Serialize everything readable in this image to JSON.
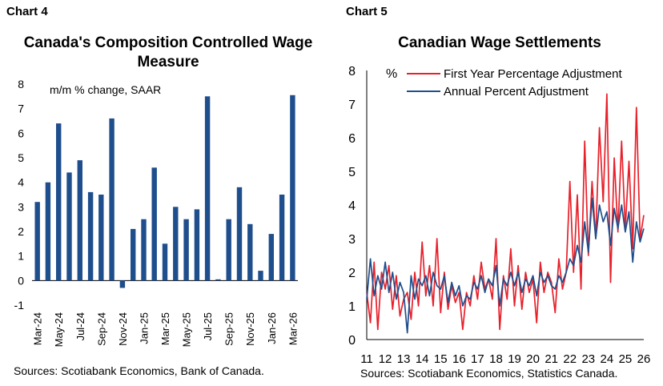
{
  "chart_data": [
    {
      "type": "bar",
      "chart_label": "Chart 4",
      "title": "Canada's Composition Controlled Wage Measure",
      "unit_label": "m/m % change, SAAR",
      "source": "Sources: Scotiabank Economics, Bank of Canada.",
      "bar_color": "#1f4e8c",
      "ylim": [
        -1,
        8
      ],
      "yticks": [
        "8",
        "7",
        "6",
        "5",
        "4",
        "3",
        "2",
        "1",
        "0",
        "-1"
      ],
      "categories": [
        "Mar-24",
        "Apr-24",
        "May-24",
        "Jun-24",
        "Jul-24",
        "Aug-24",
        "Sep-24",
        "Oct-24",
        "Nov-24",
        "Dec-24",
        "Jan-25",
        "Feb-25",
        "Mar-25",
        "Apr-25",
        "May-25",
        "Jun-25",
        "Jul-25",
        "Aug-25",
        "Sep-25",
        "Oct-25",
        "Nov-25",
        "Dec-25",
        "Jan-26",
        "Feb-26",
        "Mar-26"
      ],
      "tick_labels": [
        "Mar-24",
        "May-24",
        "Jul-24",
        "Sep-24",
        "Nov-24",
        "Jan-25",
        "Mar-25",
        "May-25",
        "Jul-25",
        "Sep-25",
        "Nov-25",
        "Jan-26",
        "Mar-26"
      ],
      "values": [
        3.2,
        4.0,
        6.4,
        4.4,
        4.9,
        3.6,
        3.5,
        6.6,
        -0.3,
        2.1,
        2.5,
        4.6,
        1.5,
        3.0,
        2.5,
        2.9,
        7.5,
        0.05,
        2.5,
        3.8,
        2.3,
        0.4,
        1.9,
        3.5,
        7.55
      ]
    },
    {
      "type": "line",
      "chart_label": "Chart 5",
      "title": "Canadian Wage Settlements",
      "ylabel": "%",
      "source": "Sources: Scotiabank Economics, Statistics Canada.",
      "ylim": [
        0,
        8
      ],
      "yticks": [
        "8",
        "7",
        "6",
        "5",
        "4",
        "3",
        "2",
        "1",
        "0"
      ],
      "xlim": [
        2011,
        2026
      ],
      "xticks": [
        "11",
        "12",
        "13",
        "14",
        "15",
        "16",
        "17",
        "18",
        "19",
        "20",
        "21",
        "22",
        "23",
        "24",
        "25",
        "26"
      ],
      "series": [
        {
          "name": "First Year Percentage Adjustment",
          "color": "#e8202a",
          "x": [
            2011.0,
            2011.2,
            2011.4,
            2011.6,
            2011.8,
            2012.0,
            2012.2,
            2012.4,
            2012.6,
            2012.8,
            2013.0,
            2013.2,
            2013.4,
            2013.6,
            2013.8,
            2014.0,
            2014.2,
            2014.4,
            2014.6,
            2014.8,
            2015.0,
            2015.2,
            2015.4,
            2015.6,
            2015.8,
            2016.0,
            2016.2,
            2016.4,
            2016.6,
            2016.8,
            2017.0,
            2017.2,
            2017.4,
            2017.6,
            2017.8,
            2018.0,
            2018.2,
            2018.4,
            2018.6,
            2018.8,
            2019.0,
            2019.2,
            2019.4,
            2019.6,
            2019.8,
            2020.0,
            2020.2,
            2020.4,
            2020.6,
            2020.8,
            2021.0,
            2021.2,
            2021.4,
            2021.6,
            2021.8,
            2022.0,
            2022.2,
            2022.4,
            2022.6,
            2022.8,
            2023.0,
            2023.2,
            2023.4,
            2023.6,
            2023.8,
            2024.0,
            2024.2,
            2024.4,
            2024.6,
            2024.8,
            2025.0,
            2025.2,
            2025.4,
            2025.6,
            2025.8,
            2026.0
          ],
          "y": [
            1.4,
            0.5,
            2.3,
            0.3,
            2.0,
            1.5,
            2.2,
            0.9,
            1.9,
            0.7,
            1.2,
            1.4,
            0.6,
            2.0,
            1.0,
            2.9,
            1.3,
            2.2,
            1.0,
            3.0,
            0.8,
            2.0,
            0.9,
            1.6,
            1.1,
            1.4,
            0.3,
            1.4,
            1.0,
            1.9,
            1.2,
            2.3,
            1.5,
            1.8,
            1.2,
            3.0,
            0.3,
            1.9,
            1.2,
            2.7,
            1.0,
            2.2,
            0.9,
            2.0,
            1.4,
            1.8,
            0.5,
            2.3,
            1.4,
            2.0,
            1.7,
            0.8,
            2.4,
            1.5,
            2.0,
            4.7,
            2.0,
            4.3,
            1.5,
            5.9,
            2.5,
            4.7,
            3.0,
            6.3,
            4.1,
            7.3,
            1.7,
            5.4,
            3.2,
            5.9,
            3.3,
            5.3,
            2.7,
            6.9,
            3.0,
            3.7
          ]
        },
        {
          "name": "Annual Percent Adjustment",
          "color": "#1f4e8c",
          "x": [
            2011.0,
            2011.2,
            2011.4,
            2011.6,
            2011.8,
            2012.0,
            2012.2,
            2012.4,
            2012.6,
            2012.8,
            2013.0,
            2013.2,
            2013.4,
            2013.6,
            2013.8,
            2014.0,
            2014.2,
            2014.4,
            2014.6,
            2014.8,
            2015.0,
            2015.2,
            2015.4,
            2015.6,
            2015.8,
            2016.0,
            2016.2,
            2016.4,
            2016.6,
            2016.8,
            2017.0,
            2017.2,
            2017.4,
            2017.6,
            2017.8,
            2018.0,
            2018.2,
            2018.4,
            2018.6,
            2018.8,
            2019.0,
            2019.2,
            2019.4,
            2019.6,
            2019.8,
            2020.0,
            2020.2,
            2020.4,
            2020.6,
            2020.8,
            2021.0,
            2021.2,
            2021.4,
            2021.6,
            2021.8,
            2022.0,
            2022.2,
            2022.4,
            2022.6,
            2022.8,
            2023.0,
            2023.2,
            2023.4,
            2023.6,
            2023.8,
            2024.0,
            2024.2,
            2024.4,
            2024.6,
            2024.8,
            2025.0,
            2025.2,
            2025.4,
            2025.6,
            2025.8,
            2026.0
          ],
          "y": [
            1.2,
            2.4,
            1.3,
            1.9,
            1.5,
            2.3,
            1.4,
            2.0,
            1.2,
            1.7,
            1.4,
            0.2,
            1.9,
            1.2,
            1.8,
            1.6,
            1.9,
            1.3,
            2.0,
            1.6,
            1.5,
            1.9,
            1.1,
            1.7,
            1.3,
            1.6,
            1.0,
            1.3,
            1.2,
            1.7,
            1.5,
            1.9,
            1.4,
            1.8,
            1.6,
            2.2,
            1.0,
            1.8,
            1.6,
            2.0,
            1.6,
            2.0,
            1.4,
            1.8,
            1.6,
            1.9,
            1.3,
            2.0,
            1.7,
            1.9,
            1.6,
            1.5,
            1.9,
            1.7,
            2.0,
            2.4,
            2.2,
            2.8,
            2.3,
            3.5,
            2.6,
            4.2,
            3.0,
            4.0,
            3.5,
            3.8,
            2.8,
            3.9,
            3.3,
            4.0,
            3.2,
            3.8,
            2.3,
            3.5,
            2.9,
            3.3
          ]
        }
      ]
    }
  ]
}
